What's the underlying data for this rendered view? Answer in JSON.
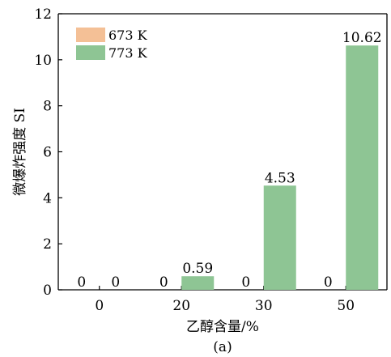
{
  "chart_data": {
    "type": "bar",
    "categories": [
      "0",
      "20",
      "30",
      "50"
    ],
    "series": [
      {
        "name": "673 K",
        "values": [
          0,
          0,
          0,
          0
        ],
        "color": "#f4c096"
      },
      {
        "name": "773 K",
        "values": [
          0,
          0.59,
          4.53,
          10.62
        ],
        "color": "#8ec594"
      }
    ],
    "data_labels": {
      "673 K": [
        "0",
        "0",
        "0",
        "0"
      ],
      "773 K": [
        "0",
        "0.59",
        "4.53",
        "10.62"
      ]
    },
    "xlabel": "乙醇含量/%",
    "ylabel": "微爆炸强度 SI",
    "ylim": [
      0,
      12
    ],
    "yticks": [
      "0",
      "2",
      "4",
      "6",
      "8",
      "10",
      "12"
    ],
    "legend_position": "top-left",
    "grid": false
  },
  "caption": "(a)"
}
